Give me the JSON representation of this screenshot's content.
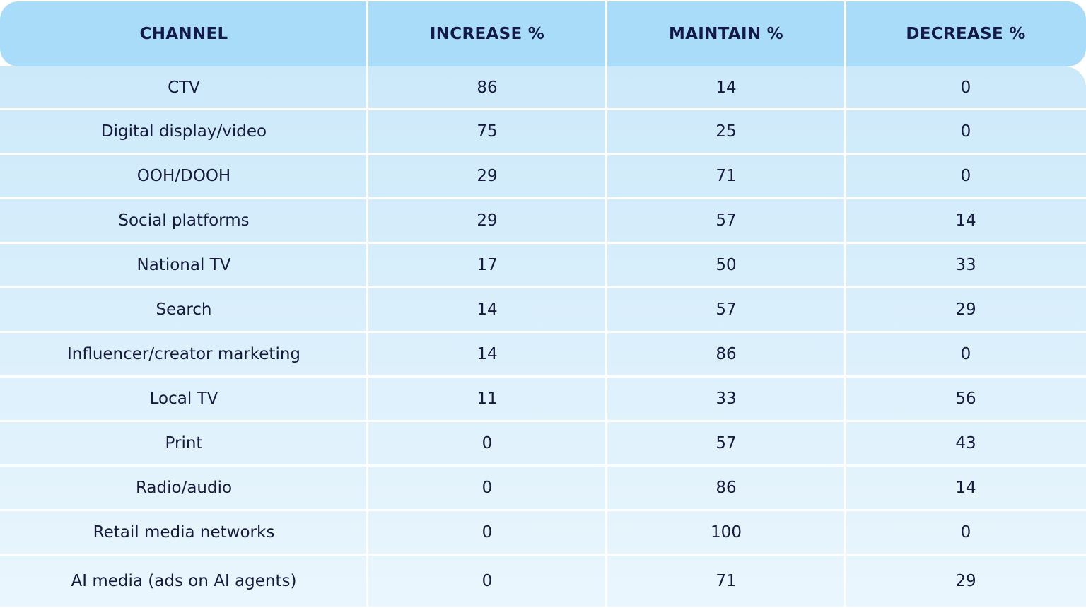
{
  "chart_data": {
    "type": "table",
    "columns": [
      "CHANNEL",
      "INCREASE %",
      "MAINTAIN %",
      "DECREASE %"
    ],
    "rows": [
      {
        "channel": "CTV",
        "increase": "86",
        "maintain": "14",
        "decrease": "0"
      },
      {
        "channel": "Digital display/video",
        "increase": "75",
        "maintain": "25",
        "decrease": "0"
      },
      {
        "channel": "OOH/DOOH",
        "increase": "29",
        "maintain": "71",
        "decrease": "0"
      },
      {
        "channel": "Social platforms",
        "increase": "29",
        "maintain": "57",
        "decrease": "14"
      },
      {
        "channel": "National TV",
        "increase": "17",
        "maintain": "50",
        "decrease": "33"
      },
      {
        "channel": "Search",
        "increase": "14",
        "maintain": "57",
        "decrease": "29"
      },
      {
        "channel": "Influencer/creator marketing",
        "increase": "14",
        "maintain": "86",
        "decrease": "0"
      },
      {
        "channel": "Local TV",
        "increase": "11",
        "maintain": "33",
        "decrease": "56"
      },
      {
        "channel": "Print",
        "increase": "0",
        "maintain": "57",
        "decrease": "43"
      },
      {
        "channel": "Radio/audio",
        "increase": "0",
        "maintain": "86",
        "decrease": "14"
      },
      {
        "channel": "Retail media networks",
        "increase": "0",
        "maintain": "100",
        "decrease": "0"
      },
      {
        "channel": "AI media (ads on AI agents)",
        "increase": "0",
        "maintain": "71",
        "decrease": "29"
      }
    ]
  },
  "colors": {
    "header_bg": "#a9dcf8",
    "header_text": "#131a4a",
    "body_top": "#cce9fa",
    "body_bottom": "#eaf6fd",
    "divider": "#ffffff",
    "cell_text": "#161a3e"
  }
}
